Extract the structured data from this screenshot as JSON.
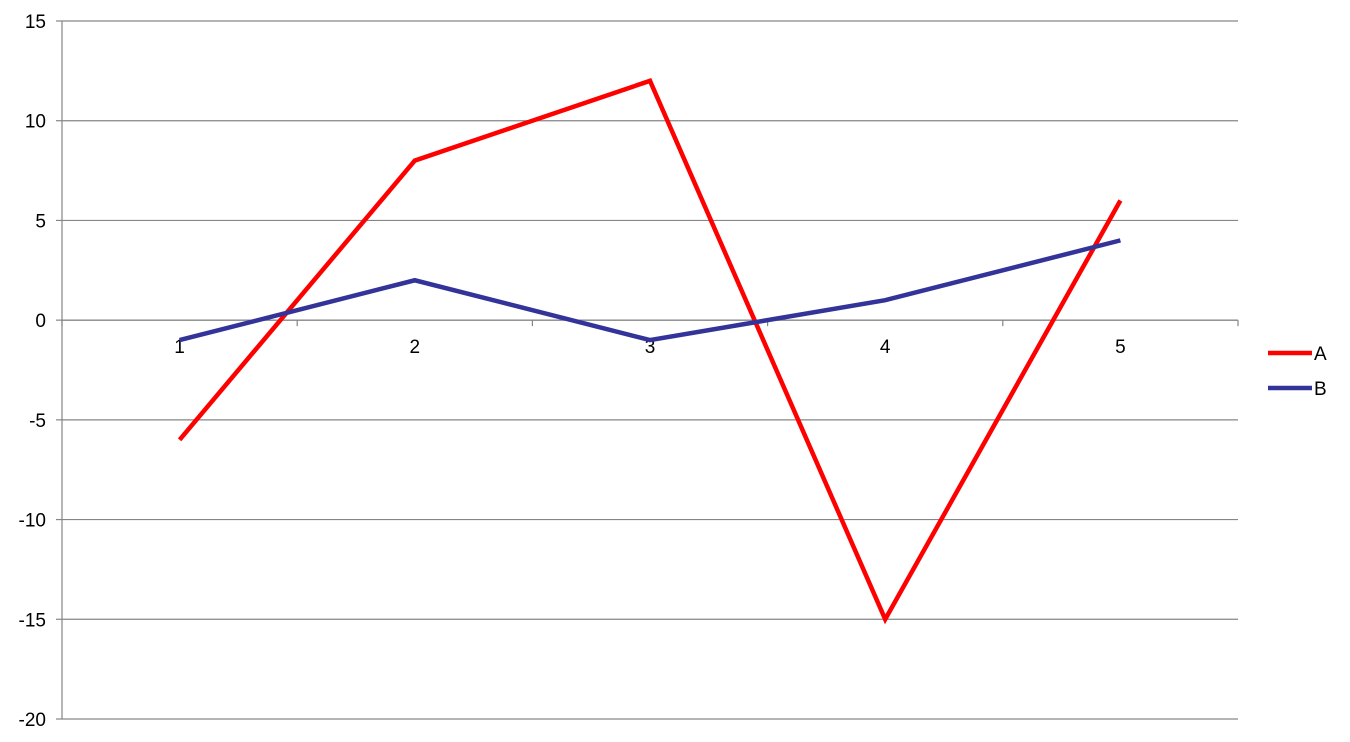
{
  "chart_data": {
    "type": "line",
    "title": "",
    "xlabel": "",
    "ylabel": "",
    "categories": [
      "1",
      "2",
      "3",
      "4",
      "5"
    ],
    "ylim": [
      -20,
      15
    ],
    "yticks": [
      15,
      10,
      5,
      0,
      -5,
      -10,
      -15,
      -20
    ],
    "grid": true,
    "legend_position": "right",
    "series": [
      {
        "name": "A",
        "color": "#ff0000",
        "values": [
          -6,
          8,
          12,
          -15,
          6
        ]
      },
      {
        "name": "B",
        "color": "#333399",
        "values": [
          -1,
          2,
          -1,
          1,
          4
        ]
      }
    ]
  }
}
